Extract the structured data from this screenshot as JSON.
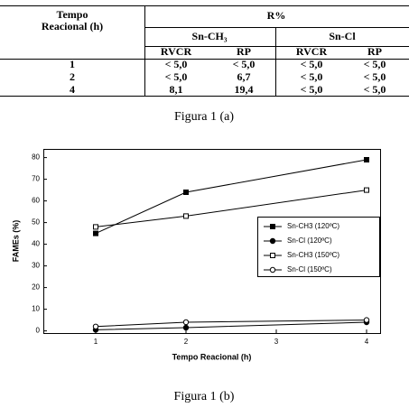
{
  "table": {
    "header": {
      "time": [
        "Tempo",
        "Reacional (h)"
      ],
      "group": "R%",
      "catalysts": [
        "Sn-CH₃",
        "Sn-Cl"
      ],
      "columns": [
        "RVCR",
        "RP",
        "RVCR",
        "RP"
      ]
    },
    "rows": [
      [
        "1",
        "< 5,0",
        "< 5,0",
        "< 5,0",
        "< 5,0"
      ],
      [
        "2",
        "< 5,0",
        "6,7",
        "< 5,0",
        "< 5,0"
      ],
      [
        "4",
        "8,1",
        "19,4",
        "< 5,0",
        "< 5,0"
      ]
    ]
  },
  "caption_a": "Figura 1 (a)",
  "chart_data": {
    "type": "line",
    "x": [
      1,
      2,
      4
    ],
    "xlim": [
      0.42,
      4.15
    ],
    "xticks": [
      1,
      2,
      3,
      4
    ],
    "ylim": [
      -1,
      84
    ],
    "yticks": [
      0,
      10,
      20,
      30,
      40,
      50,
      60,
      70,
      80
    ],
    "xlabel": "Tempo Reacional (h)",
    "ylabel": "FAMEs (%)",
    "series": [
      {
        "name": "Sn-CH3 (120ºC)",
        "color": "#000000",
        "marker": "square",
        "filled": true,
        "values": [
          45,
          64,
          79
        ]
      },
      {
        "name": "Sn-Cl (120ºC)",
        "color": "#000000",
        "marker": "circle",
        "filled": true,
        "values": [
          0.5,
          1.5,
          4
        ]
      },
      {
        "name": "Sn-CH3 (150ºC)",
        "color": "#000000",
        "marker": "square",
        "filled": false,
        "values": [
          48,
          53,
          65
        ]
      },
      {
        "name": "Sn-Cl (150ºC)",
        "color": "#000000",
        "marker": "circle",
        "filled": false,
        "values": [
          2,
          4,
          5
        ]
      }
    ]
  },
  "caption_b": "Figura 1 (b)"
}
